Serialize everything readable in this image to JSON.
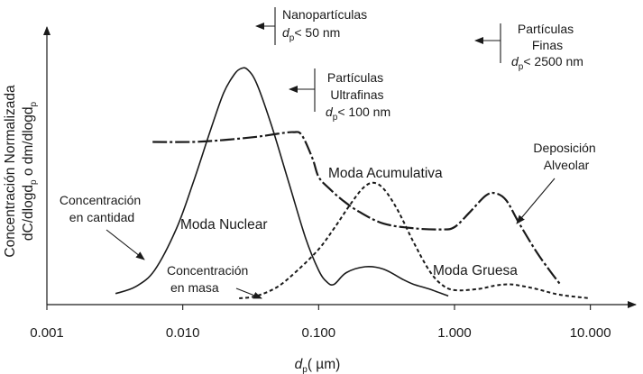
{
  "chart_data": {
    "type": "line",
    "xlabel": {
      "main": "d",
      "sub": "p",
      "rest": "( µm)"
    },
    "ylabel": {
      "line1": "Concentración Normalizada",
      "line2_parts": [
        {
          "t": "dC/dlogd",
          "sub": false
        },
        {
          "t": "p",
          "sub": true
        },
        {
          "t": " o dm/dlogd",
          "sub": false
        },
        {
          "t": "p",
          "sub": true
        }
      ]
    },
    "xscale": "log",
    "xlim": [
      0.001,
      20
    ],
    "ylim": [
      0,
      1
    ],
    "xticks": [
      {
        "value": 0.001,
        "label": "0.001"
      },
      {
        "value": 0.01,
        "label": "0.010"
      },
      {
        "value": 0.1,
        "label": "0.100"
      },
      {
        "value": 1,
        "label": "1.000"
      },
      {
        "value": 10,
        "label": "10.000"
      }
    ],
    "series": [
      {
        "name": "Concentración en cantidad",
        "style": "solid",
        "points": [
          [
            0.0032,
            0.02
          ],
          [
            0.0045,
            0.05
          ],
          [
            0.0062,
            0.12
          ],
          [
            0.009,
            0.3
          ],
          [
            0.012,
            0.5
          ],
          [
            0.016,
            0.72
          ],
          [
            0.02,
            0.88
          ],
          [
            0.024,
            0.96
          ],
          [
            0.027,
            0.985
          ],
          [
            0.03,
            0.98
          ],
          [
            0.035,
            0.92
          ],
          [
            0.045,
            0.74
          ],
          [
            0.06,
            0.5
          ],
          [
            0.08,
            0.26
          ],
          [
            0.1,
            0.12
          ],
          [
            0.115,
            0.07
          ],
          [
            0.13,
            0.06
          ],
          [
            0.16,
            0.11
          ],
          [
            0.22,
            0.135
          ],
          [
            0.3,
            0.125
          ],
          [
            0.42,
            0.08
          ],
          [
            0.5,
            0.06
          ],
          [
            0.65,
            0.04
          ],
          [
            0.9,
            0.01
          ]
        ]
      },
      {
        "name": "Deposición Alveolar",
        "style": "long-dash",
        "points": [
          [
            0.006,
            0.67
          ],
          [
            0.012,
            0.67
          ],
          [
            0.02,
            0.678
          ],
          [
            0.035,
            0.692
          ],
          [
            0.05,
            0.705
          ],
          [
            0.065,
            0.712
          ],
          [
            0.075,
            0.7
          ],
          [
            0.09,
            0.6
          ],
          [
            0.1,
            0.52
          ],
          [
            0.12,
            0.47
          ],
          [
            0.15,
            0.42
          ],
          [
            0.2,
            0.37
          ],
          [
            0.3,
            0.32
          ],
          [
            0.5,
            0.3
          ],
          [
            0.8,
            0.295
          ],
          [
            1.0,
            0.305
          ],
          [
            1.3,
            0.37
          ],
          [
            1.7,
            0.44
          ],
          [
            2.0,
            0.45
          ],
          [
            2.4,
            0.42
          ],
          [
            3.0,
            0.32
          ],
          [
            4.0,
            0.2
          ],
          [
            5.0,
            0.12
          ],
          [
            6.0,
            0.06
          ]
        ]
      },
      {
        "name": "Concentración en masa",
        "style": "short-dash",
        "points": [
          [
            0.026,
            0.0
          ],
          [
            0.035,
            0.01
          ],
          [
            0.05,
            0.05
          ],
          [
            0.07,
            0.12
          ],
          [
            0.1,
            0.21
          ],
          [
            0.13,
            0.3
          ],
          [
            0.17,
            0.4
          ],
          [
            0.21,
            0.47
          ],
          [
            0.25,
            0.495
          ],
          [
            0.3,
            0.47
          ],
          [
            0.38,
            0.38
          ],
          [
            0.5,
            0.24
          ],
          [
            0.65,
            0.12
          ],
          [
            0.8,
            0.06
          ],
          [
            1.0,
            0.035
          ],
          [
            1.5,
            0.04
          ],
          [
            2.0,
            0.055
          ],
          [
            2.5,
            0.06
          ],
          [
            3.0,
            0.055
          ],
          [
            4.0,
            0.04
          ],
          [
            6.0,
            0.015
          ],
          [
            10.0,
            0.0
          ]
        ]
      }
    ],
    "annotations": [
      {
        "lines": [
          "Moda Nuclear"
        ],
        "big": true
      },
      {
        "lines": [
          "Moda Acumulativa"
        ],
        "big": true
      },
      {
        "lines": [
          "Moda Gruesa"
        ],
        "big": true
      },
      {
        "lines": [
          "Deposición",
          "Alveolar"
        ]
      },
      {
        "lines": [
          "Concentración",
          "en cantidad"
        ]
      },
      {
        "lines": [
          "Concentración",
          "en masa"
        ]
      },
      {
        "lines": [
          "Nanopartículas"
        ],
        "dp_label": {
          "d": "d",
          "p": "p",
          "text": "< 50 nm"
        }
      },
      {
        "lines": [
          "Partículas",
          "Ultrafinas"
        ],
        "dp_label": {
          "d": "d",
          "p": "p",
          "text": "< 100 nm"
        }
      },
      {
        "lines": [
          "Partículas",
          "Finas"
        ],
        "dp_label": {
          "d": "d",
          "p": "p",
          "text": "< 2500 nm"
        }
      }
    ]
  }
}
